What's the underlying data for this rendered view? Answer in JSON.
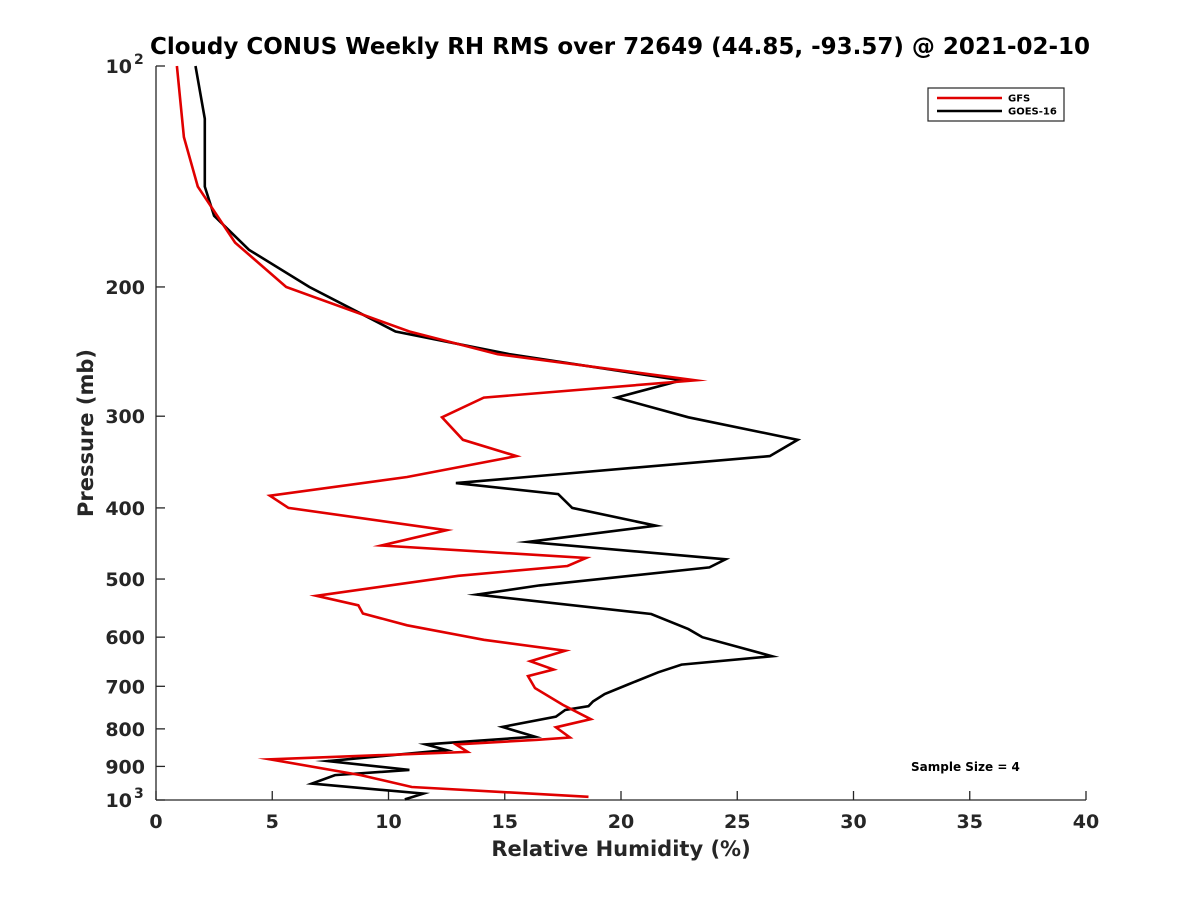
{
  "chart_data": {
    "type": "line",
    "title": "Cloudy CONUS Weekly RH RMS over 72649 (44.85, -93.57) @ 2021-02-10",
    "xlabel": "Relative Humidity (%)",
    "ylabel": "Pressure (mb)",
    "xlim": [
      0,
      40
    ],
    "ylim": [
      100,
      1000
    ],
    "y_scale": "log",
    "y_reversed": true,
    "x_ticks": [
      "0",
      "5",
      "10",
      "15",
      "20",
      "25",
      "30",
      "35",
      "40"
    ],
    "x_tick_values": [
      0,
      5,
      10,
      15,
      20,
      25,
      30,
      35,
      40
    ],
    "y_ticks": [
      {
        "value": 100,
        "base": "10",
        "exp": "2"
      },
      {
        "value": 200,
        "label": "200"
      },
      {
        "value": 300,
        "label": "300"
      },
      {
        "value": 400,
        "label": "400"
      },
      {
        "value": 500,
        "label": "500"
      },
      {
        "value": 600,
        "label": "600"
      },
      {
        "value": 700,
        "label": "700"
      },
      {
        "value": 800,
        "label": "800"
      },
      {
        "value": 900,
        "label": "900"
      },
      {
        "value": 1000,
        "base": "10",
        "exp": "3"
      }
    ],
    "grid": false,
    "legend_position": "top-right",
    "annotation": "Sample Size = 4",
    "series": [
      {
        "name": "GFS",
        "color": "#e00000",
        "points": [
          [
            0.9,
            100
          ],
          [
            1.2,
            125
          ],
          [
            1.8,
            146
          ],
          [
            3.4,
            174
          ],
          [
            5.6,
            200
          ],
          [
            10.9,
            230
          ],
          [
            14.7,
            247
          ],
          [
            23.2,
            268
          ],
          [
            14.1,
            283
          ],
          [
            12.3,
            301
          ],
          [
            13.2,
            323
          ],
          [
            15.5,
            340
          ],
          [
            10.8,
            363
          ],
          [
            4.9,
            385
          ],
          [
            5.7,
            400
          ],
          [
            12.5,
            429
          ],
          [
            9.7,
            450
          ],
          [
            18.5,
            468
          ],
          [
            17.7,
            480
          ],
          [
            13.0,
            495
          ],
          [
            6.9,
            527
          ],
          [
            8.7,
            543
          ],
          [
            8.9,
            557
          ],
          [
            10.8,
            578
          ],
          [
            14.1,
            605
          ],
          [
            17.6,
            626
          ],
          [
            16.1,
            647
          ],
          [
            17.1,
            664
          ],
          [
            16.0,
            678
          ],
          [
            16.3,
            704
          ],
          [
            17.5,
            742
          ],
          [
            18.7,
            776
          ],
          [
            17.2,
            796
          ],
          [
            17.8,
            822
          ],
          [
            16.4,
            828
          ],
          [
            12.9,
            840
          ],
          [
            13.4,
            860
          ],
          [
            4.9,
            880
          ],
          [
            8.8,
            925
          ],
          [
            11.0,
            960
          ],
          [
            18.6,
            990
          ]
        ]
      },
      {
        "name": "GOES-16",
        "color": "#000000",
        "points": [
          [
            1.7,
            100
          ],
          [
            2.1,
            118
          ],
          [
            2.1,
            146
          ],
          [
            2.5,
            160
          ],
          [
            4.0,
            178
          ],
          [
            6.6,
            200
          ],
          [
            10.3,
            230
          ],
          [
            15.2,
            247
          ],
          [
            22.6,
            268
          ],
          [
            19.8,
            283
          ],
          [
            22.9,
            301
          ],
          [
            27.6,
            323
          ],
          [
            26.4,
            340
          ],
          [
            12.9,
            370
          ],
          [
            17.3,
            383
          ],
          [
            17.9,
            400
          ],
          [
            21.5,
            423
          ],
          [
            16.0,
            445
          ],
          [
            24.5,
            470
          ],
          [
            23.8,
            482
          ],
          [
            16.5,
            510
          ],
          [
            13.8,
            525
          ],
          [
            21.3,
            558
          ],
          [
            22.9,
            585
          ],
          [
            23.5,
            600
          ],
          [
            26.5,
            637
          ],
          [
            22.6,
            654
          ],
          [
            21.6,
            670
          ],
          [
            20.3,
            696
          ],
          [
            19.3,
            717
          ],
          [
            18.8,
            734
          ],
          [
            18.6,
            745
          ],
          [
            17.6,
            754
          ],
          [
            17.2,
            770
          ],
          [
            14.9,
            795
          ],
          [
            16.3,
            820
          ],
          [
            11.6,
            840
          ],
          [
            12.5,
            855
          ],
          [
            7.4,
            885
          ],
          [
            10.9,
            910
          ],
          [
            7.7,
            925
          ],
          [
            6.7,
            950
          ],
          [
            11.5,
            980
          ],
          [
            10.7,
            998
          ]
        ]
      }
    ]
  }
}
